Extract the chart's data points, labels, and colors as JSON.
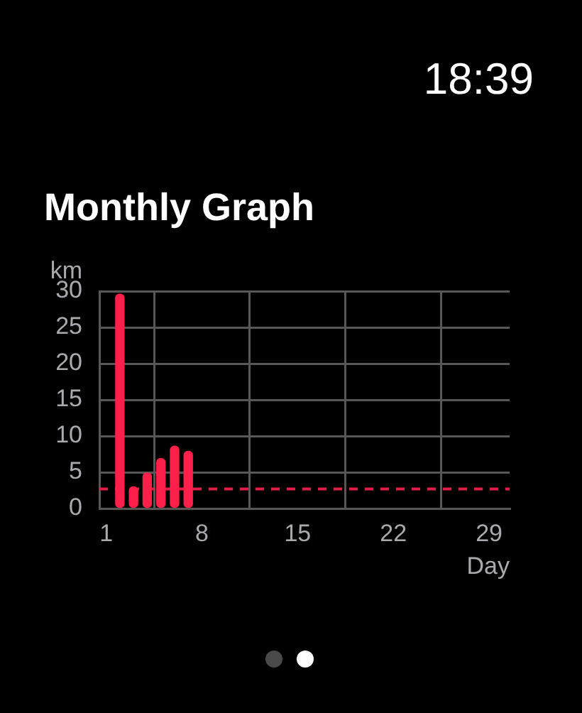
{
  "chart_data": {
    "type": "bar",
    "title": "Monthly Graph",
    "ylabel": "km",
    "xlabel": "Day",
    "x": [
      2,
      3,
      4,
      5,
      6,
      7
    ],
    "values": [
      29.6,
      3.0,
      4.9,
      6.9,
      8.6,
      7.9
    ],
    "color": "#ff1f4b",
    "xlim": [
      0.5,
      30.5
    ],
    "xticks": [
      1,
      8,
      15,
      22,
      29
    ],
    "ylim": [
      0,
      30
    ],
    "yticks": [
      0,
      5,
      10,
      15,
      20,
      25,
      30
    ],
    "grid": true,
    "ref_lines": [
      {
        "axis": "y",
        "value": 2.7,
        "color": "#e11d48",
        "line_style": "dashed"
      }
    ],
    "annotations": [
      "18:39"
    ]
  }
}
